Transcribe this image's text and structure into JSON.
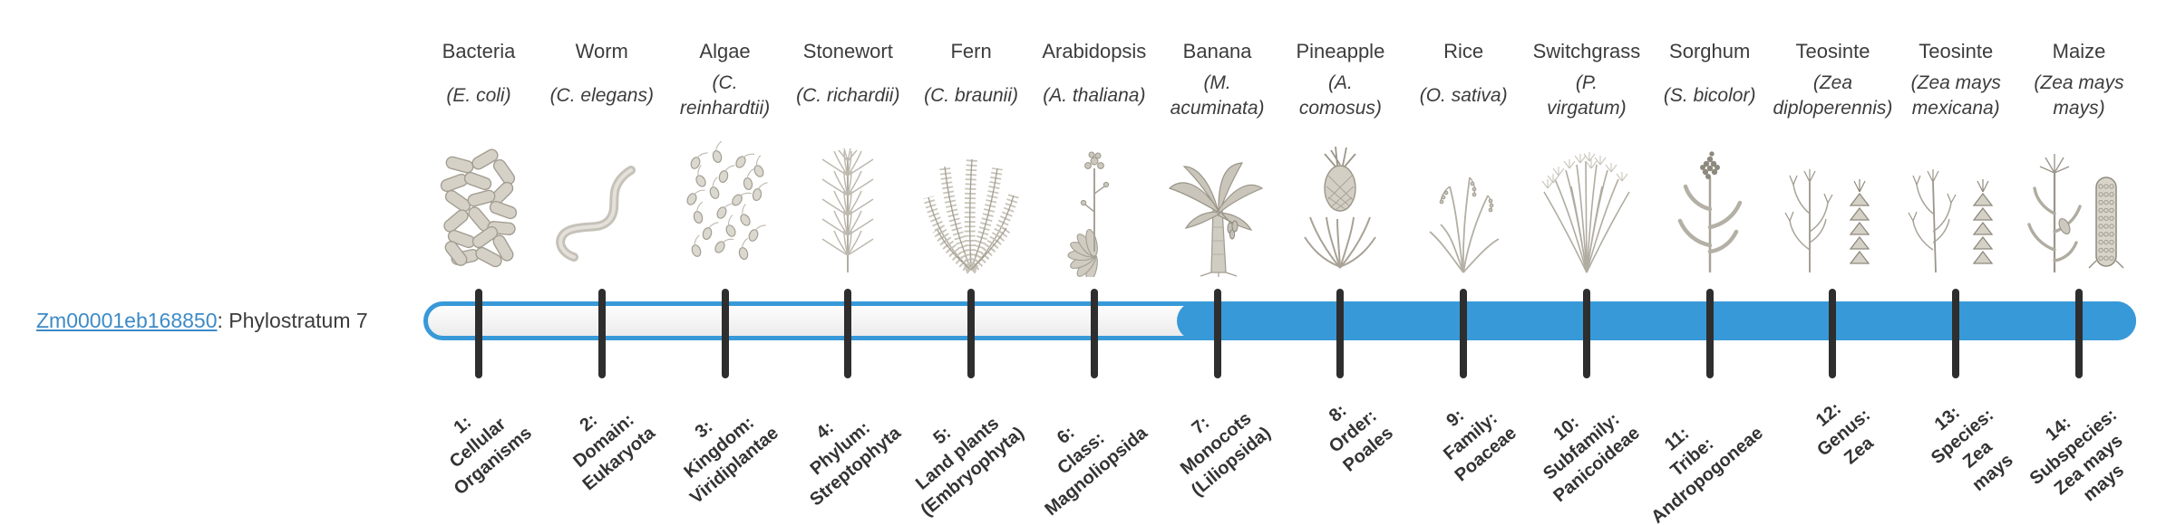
{
  "gene": {
    "id": "Zm00001eb168850",
    "phylostratum_text": ": Phylostratum 7",
    "phylostratum": 7
  },
  "timeline": {
    "total_strata": 14,
    "filled_from_stratum": 7
  },
  "theme": {
    "accent_blue": "#3899d8",
    "track_empty": "#f5f5f5",
    "tick_color": "#2e2e2e",
    "link_blue": "#3d8bc7",
    "text_color": "#3c3c3c"
  },
  "organisms": [
    {
      "name": "Bacteria",
      "sci": "(E. coli)",
      "icon": "bacteria-icon",
      "taxonomy": "1:\nCellular\nOrganisms"
    },
    {
      "name": "Worm",
      "sci": "(C. elegans)",
      "icon": "worm-icon",
      "taxonomy": "2:\nDomain:\nEukaryota"
    },
    {
      "name": "Algae",
      "sci": "(C.\nreinhardtii)",
      "icon": "algae-icon",
      "taxonomy": "3:\nKingdom:\nViridiplantae"
    },
    {
      "name": "Stonewort",
      "sci": "(C. richardii)",
      "icon": "stonewort-icon",
      "taxonomy": "4:\nPhylum:\nStreptophyta"
    },
    {
      "name": "Fern",
      "sci": "(C. braunii)",
      "icon": "fern-icon",
      "taxonomy": "5:\nLand plants\n(Embryophyta)"
    },
    {
      "name": "Arabidopsis",
      "sci": "(A. thaliana)",
      "icon": "arabidopsis-icon",
      "taxonomy": "6:\nClass:\nMagnoliopsida"
    },
    {
      "name": "Banana",
      "sci": "(M.\nacuminata)",
      "icon": "banana-icon",
      "taxonomy": "7:\nMonocots\n(Liliopsida)"
    },
    {
      "name": "Pineapple",
      "sci": "(A.\ncomosus)",
      "icon": "pineapple-icon",
      "taxonomy": "8:\nOrder:\nPoales"
    },
    {
      "name": "Rice",
      "sci": "(O. sativa)",
      "icon": "rice-icon",
      "taxonomy": "9:\nFamily:\nPoaceae"
    },
    {
      "name": "Switchgrass",
      "sci": "(P.\nvirgatum)",
      "icon": "switchgrass-icon",
      "taxonomy": "10:\nSubfamily:\nPanicoideae"
    },
    {
      "name": "Sorghum",
      "sci": "(S. bicolor)",
      "icon": "sorghum-icon",
      "taxonomy": "11:\nTribe:\nAndropogoneae"
    },
    {
      "name": "Teosinte",
      "sci": "(Zea\ndiploperennis)",
      "icon": "teosinte-icon",
      "taxonomy": "12:\nGenus:\nZea"
    },
    {
      "name": "Teosinte",
      "sci": "(Zea mays\nmexicana)",
      "icon": "teosinte2-icon",
      "taxonomy": "13:\nSpecies:\nZea\nmays"
    },
    {
      "name": "Maize",
      "sci": "(Zea mays\nmays)",
      "icon": "maize-icon",
      "taxonomy": "14:\nSubspecies:\nZea mays\nmays"
    }
  ]
}
